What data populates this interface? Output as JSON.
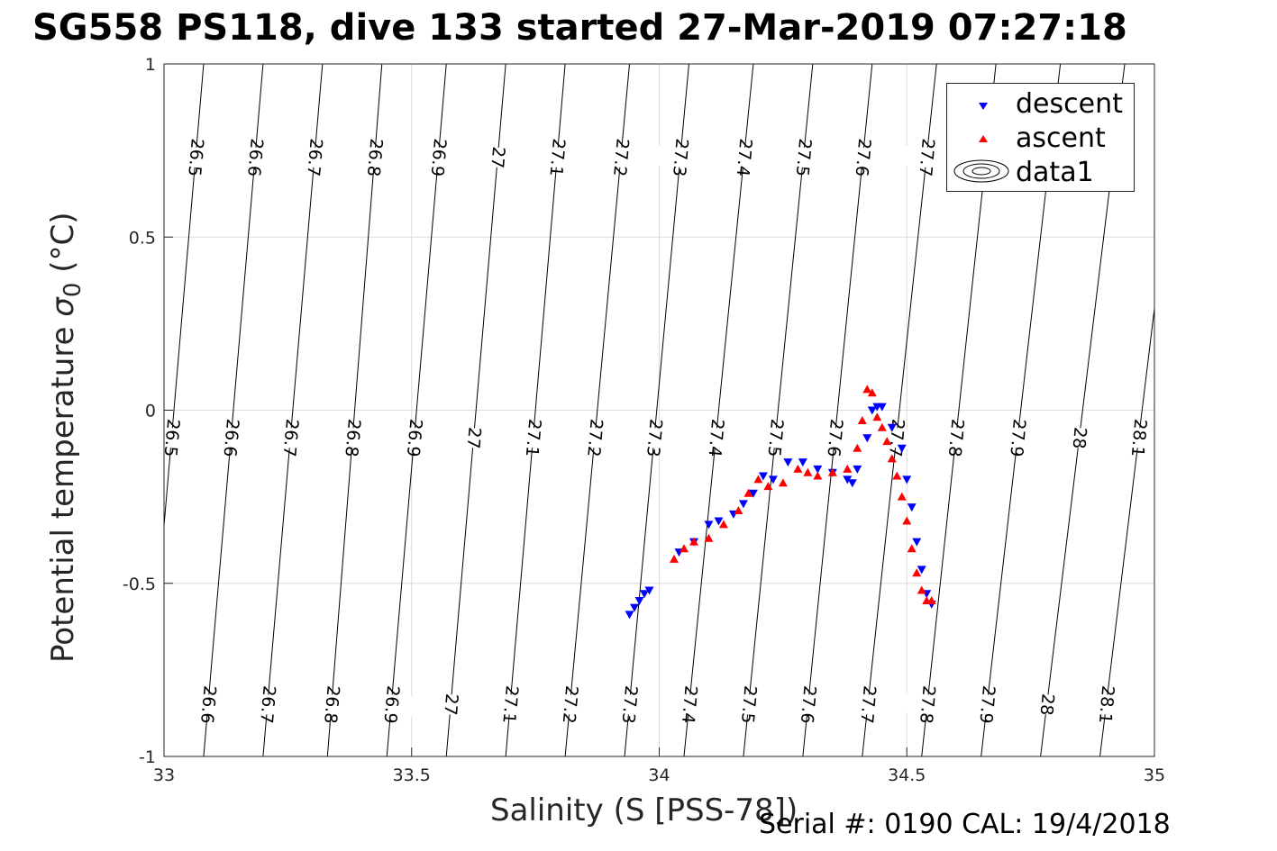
{
  "title": "SG558 PS118, dive 133 started 27-Mar-2019 07:27:18",
  "footer": "Serial #: 0190  CAL: 19/4/2018",
  "colors": {
    "descent": "#0000ff",
    "ascent": "#ff0000",
    "grid": "#dcdcdc",
    "contour": "#000000"
  },
  "chart_data": {
    "type": "scatter",
    "xlabel": "Salinity (S [PSS-78])",
    "ylabel": "Potential temperature σ₀ (°C)",
    "ylabel_main": "Potential temperature",
    "ylabel_sigma": "σ",
    "ylabel_sub": "0",
    "ylabel_unit": "(°C)",
    "xlim": [
      33,
      35
    ],
    "ylim": [
      -1,
      1
    ],
    "xticks": [
      "33",
      "33.5",
      "34",
      "34.5",
      "35"
    ],
    "yticks": [
      "-1",
      "-0.5",
      "0",
      "0.5",
      "1"
    ],
    "grid": true,
    "legend": {
      "position": "top-right",
      "entries": [
        "descent",
        "ascent",
        "data1"
      ]
    },
    "density_contours": {
      "levels": [
        26.5,
        26.6,
        26.7,
        26.8,
        26.9,
        27,
        27.1,
        27.2,
        27.3,
        27.4,
        27.5,
        27.6,
        27.7,
        27.8,
        27.9,
        28,
        28.1
      ],
      "salinity_at_1C": [
        33.08,
        33.2,
        33.32,
        33.44,
        33.57,
        33.69,
        33.81,
        33.94,
        34.06,
        34.19,
        34.31,
        34.43,
        34.56,
        34.68,
        34.81,
        34.94,
        35.06
      ],
      "salinity_at_minus1C": [
        32.96,
        33.08,
        33.2,
        33.33,
        33.45,
        33.57,
        33.69,
        33.81,
        33.93,
        34.05,
        34.17,
        34.29,
        34.41,
        34.53,
        34.65,
        34.77,
        34.89
      ],
      "top_labels": [
        "26.5",
        "26.6",
        "26.7",
        "26.8",
        "26.9",
        "27",
        "27.1",
        "27.2",
        "27.3",
        "27.4",
        "27.5",
        "27.6",
        "27.7"
      ],
      "mid_labels": [
        "26.5",
        "26.6",
        "26.7",
        "26.8",
        "26.9",
        "27",
        "27.1",
        "27.2",
        "27.3",
        "27.4",
        "27.5",
        "27.6",
        "27.7",
        "27.8",
        "27.9",
        "28",
        "28.1"
      ],
      "bottom_labels": [
        "26.6",
        "26.7",
        "26.8",
        "26.9",
        "27",
        "27.1",
        "27.2",
        "27.3",
        "27.4",
        "27.5",
        "27.6",
        "27.7",
        "27.8",
        "27.9",
        "28",
        "28.1"
      ]
    },
    "series": [
      {
        "name": "descent",
        "marker": "triangle-down",
        "x": [
          33.94,
          33.95,
          33.96,
          33.97,
          33.98,
          34.04,
          34.07,
          34.1,
          34.12,
          34.15,
          34.17,
          34.19,
          34.21,
          34.23,
          34.26,
          34.29,
          34.32,
          34.35,
          34.38,
          34.39,
          34.4,
          34.42,
          34.43,
          34.44,
          34.45,
          34.47,
          34.49,
          34.5,
          34.51,
          34.52,
          34.53,
          34.54,
          34.55
        ],
        "y": [
          -0.59,
          -0.57,
          -0.55,
          -0.53,
          -0.52,
          -0.41,
          -0.38,
          -0.33,
          -0.32,
          -0.3,
          -0.27,
          -0.24,
          -0.19,
          -0.2,
          -0.15,
          -0.15,
          -0.17,
          -0.18,
          -0.2,
          -0.21,
          -0.17,
          -0.08,
          0.0,
          0.01,
          0.01,
          -0.05,
          -0.11,
          -0.2,
          -0.28,
          -0.38,
          -0.46,
          -0.53,
          -0.56
        ]
      },
      {
        "name": "ascent",
        "marker": "triangle-up",
        "x": [
          34.03,
          34.05,
          34.07,
          34.1,
          34.13,
          34.16,
          34.18,
          34.2,
          34.22,
          34.25,
          34.28,
          34.3,
          34.32,
          34.35,
          34.38,
          34.4,
          34.41,
          34.42,
          34.43,
          34.44,
          34.45,
          34.46,
          34.47,
          34.48,
          34.49,
          34.5,
          34.51,
          34.52,
          34.53,
          34.54,
          34.55
        ],
        "y": [
          -0.43,
          -0.4,
          -0.38,
          -0.37,
          -0.33,
          -0.29,
          -0.24,
          -0.2,
          -0.22,
          -0.21,
          -0.17,
          -0.18,
          -0.19,
          -0.18,
          -0.17,
          -0.11,
          -0.03,
          0.06,
          0.05,
          -0.02,
          -0.05,
          -0.09,
          -0.14,
          -0.19,
          -0.25,
          -0.32,
          -0.4,
          -0.47,
          -0.52,
          -0.55,
          -0.55
        ]
      }
    ]
  }
}
